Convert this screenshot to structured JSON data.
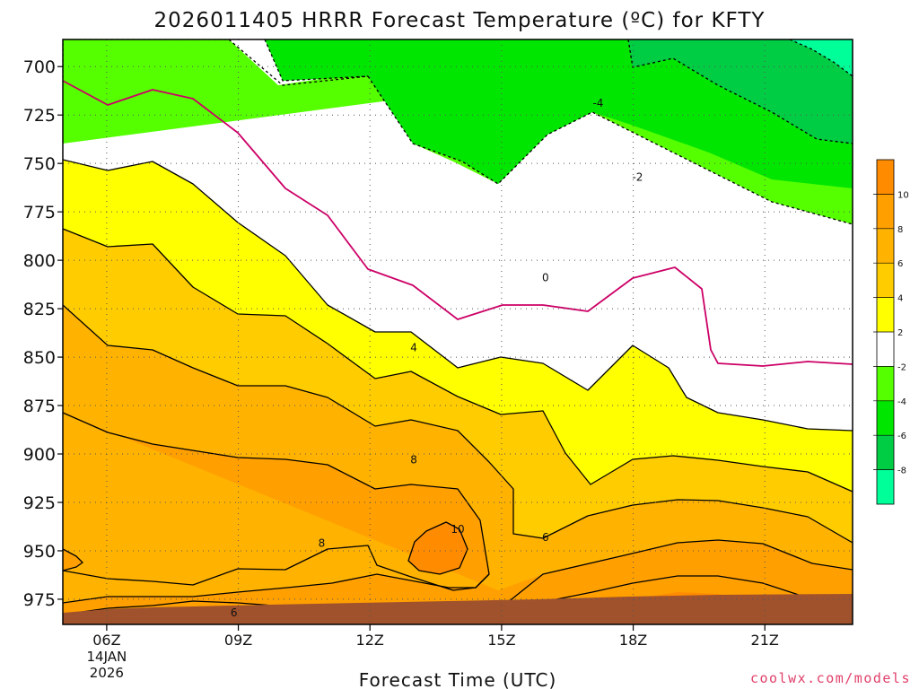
{
  "chart_data": {
    "type": "contour",
    "title": "2026011405 HRRR Forecast Temperature (ºC) for KFTY",
    "xlabel": "Forecast Time (UTC)",
    "ylabel": "",
    "x_ticks": [
      {
        "hour": 6,
        "label": "06Z",
        "sublabels": [
          "14JAN",
          "2026"
        ]
      },
      {
        "hour": 9,
        "label": "09Z",
        "sublabels": []
      },
      {
        "hour": 12,
        "label": "12Z",
        "sublabels": []
      },
      {
        "hour": 15,
        "label": "15Z",
        "sublabels": []
      },
      {
        "hour": 18,
        "label": "18Z",
        "sublabels": []
      },
      {
        "hour": 21,
        "label": "21Z",
        "sublabels": []
      }
    ],
    "y_ticks": [
      700,
      725,
      750,
      775,
      800,
      825,
      850,
      875,
      900,
      925,
      950,
      975
    ],
    "xlim_hours": [
      5,
      23
    ],
    "ylim_hPa": [
      686,
      988
    ],
    "y_axis_inverted": true,
    "grid": "dotted",
    "contour_interval_C": 2,
    "contour_levels_C": [
      -4,
      -2,
      0,
      2,
      4,
      6,
      8,
      10
    ],
    "contour_labels": [
      {
        "text": "-4",
        "hour": 17.2,
        "hPa": 719
      },
      {
        "text": "-2",
        "hour": 18.1,
        "hPa": 757
      },
      {
        "text": "0",
        "hour": 16.0,
        "hPa": 809
      },
      {
        "text": "4",
        "hour": 13.0,
        "hPa": 845
      },
      {
        "text": "8",
        "hour": 13.0,
        "hPa": 903
      },
      {
        "text": "10",
        "hour": 14.0,
        "hPa": 939
      },
      {
        "text": "6",
        "hour": 16.0,
        "hPa": 943
      },
      {
        "text": "8",
        "hour": 10.9,
        "hPa": 946
      },
      {
        "text": "6",
        "hour": 8.9,
        "hPa": 982
      }
    ],
    "colorbar": {
      "placement": "right",
      "labels": [
        "10",
        "8",
        "6",
        "4",
        "2",
        "-2",
        "-4",
        "-6",
        "-8"
      ],
      "bins": [
        {
          "range": "above 10",
          "color": "#ff8c00"
        },
        {
          "range": "8 to 10",
          "color": "#ff9f00"
        },
        {
          "range": "6 to 8",
          "color": "#ffb300"
        },
        {
          "range": "4 to 6",
          "color": "#ffcc00"
        },
        {
          "range": "2 to 4",
          "color": "#ffff00"
        },
        {
          "range": "-2 to 2",
          "color": "#ffffff"
        },
        {
          "range": "-4 to -2",
          "color": "#55ff00"
        },
        {
          "range": "-6 to -4",
          "color": "#00e600"
        },
        {
          "range": "-8 to -6",
          "color": "#00cc44"
        },
        {
          "range": "below -8",
          "color": "#00ff99"
        }
      ]
    },
    "colors": {
      "zero_line": "#cc0066",
      "ground": "#a0522d",
      "frame": "#000000"
    }
  },
  "footer": {
    "credit": "coolwx.com/models"
  }
}
